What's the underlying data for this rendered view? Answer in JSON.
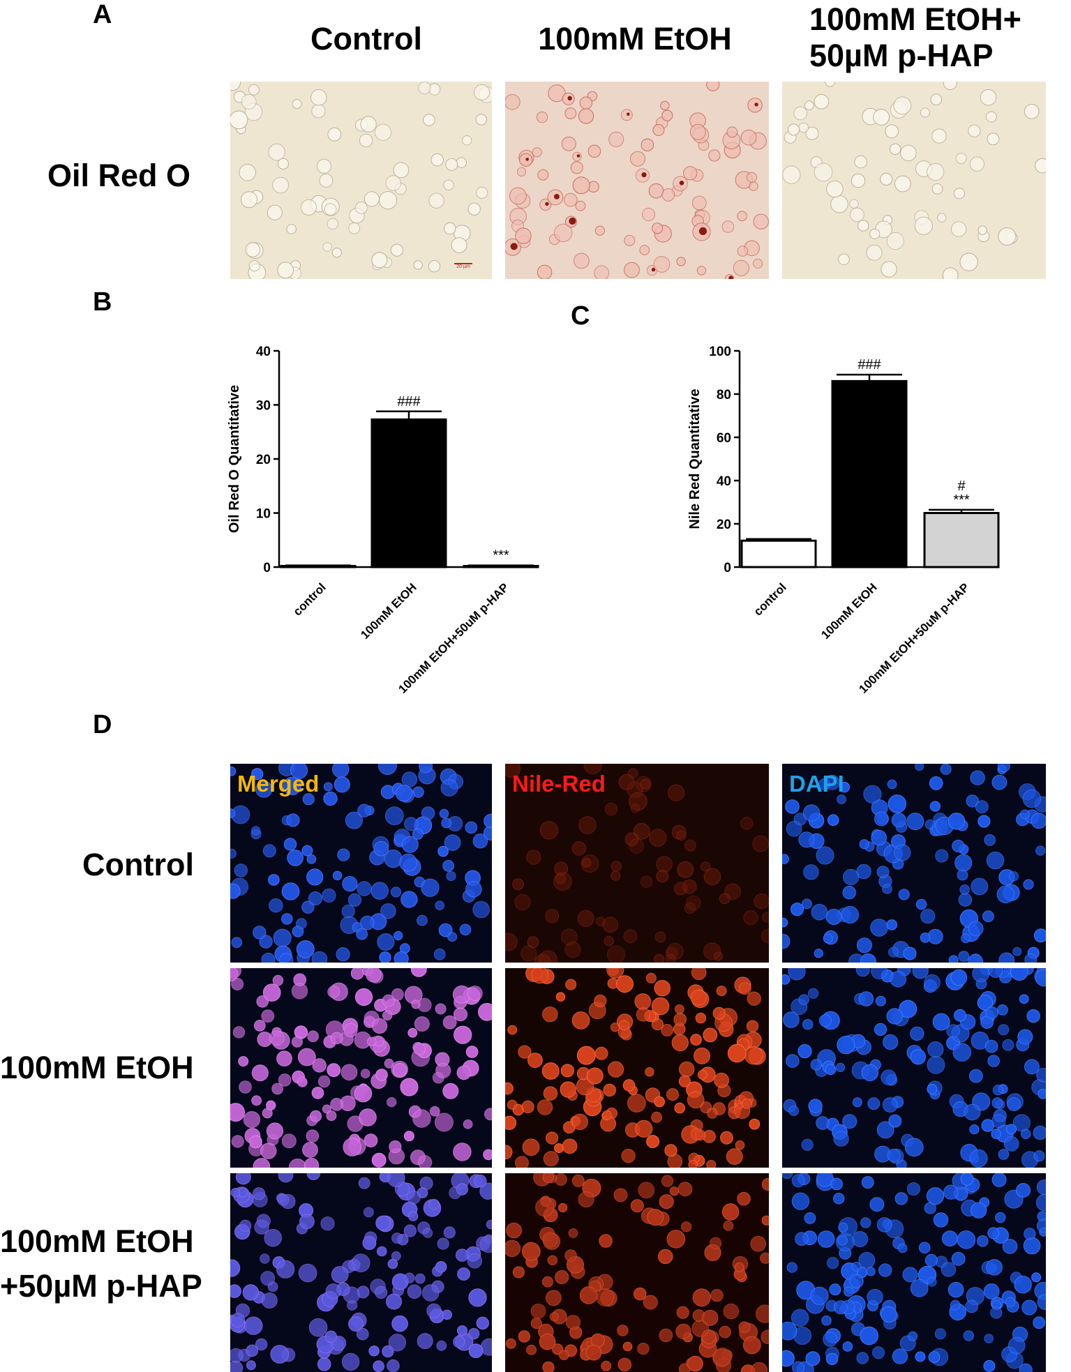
{
  "panels": {
    "a": "A",
    "b": "B",
    "c": "C",
    "d": "D"
  },
  "panel_a": {
    "columns": [
      "Control",
      "100mM EtOH",
      "100mM EtOH+\n50µM p-HAP"
    ],
    "row_label": "Oil Red O",
    "scale_bar": "20 µm"
  },
  "panel_d": {
    "channels": [
      "Merged",
      "Nile-Red",
      "DAPI"
    ],
    "channel_colors": [
      "#f5b800",
      "#ff1a1a",
      "#1ba3e8"
    ],
    "rows": [
      "Control",
      "100mM EtOH",
      "100mM EtOH\n+50µM p-HAP"
    ]
  },
  "chart_data": [
    {
      "type": "bar",
      "categories": [
        "control",
        "100mM EtOH",
        "100mM EtOH+50uM p-HAP"
      ],
      "values": [
        0.2,
        27.3,
        0.2
      ],
      "errors": [
        0.1,
        1.5,
        0.1
      ],
      "annotations": [
        "",
        "###",
        "***"
      ],
      "bar_colors": [
        "#ffffff",
        "#000000",
        "#ffffff"
      ],
      "ylabel": "Oil Red O Quantitative",
      "ylim": [
        0,
        40
      ],
      "yticks": [
        0,
        10,
        20,
        30,
        40
      ]
    },
    {
      "type": "bar",
      "categories": [
        "control",
        "100mM EtOH",
        "100mM EtOH+50uM p-HAP"
      ],
      "values": [
        12.2,
        86,
        25
      ],
      "errors": [
        0.8,
        3,
        1.5
      ],
      "annotations": [
        "",
        "###",
        "#\n***"
      ],
      "bar_colors": [
        "#ffffff",
        "#000000",
        "#d3d3d3"
      ],
      "ylabel": "Nile Red Quantitative",
      "ylim": [
        0,
        100
      ],
      "yticks": [
        0,
        20,
        40,
        60,
        80,
        100
      ]
    }
  ]
}
